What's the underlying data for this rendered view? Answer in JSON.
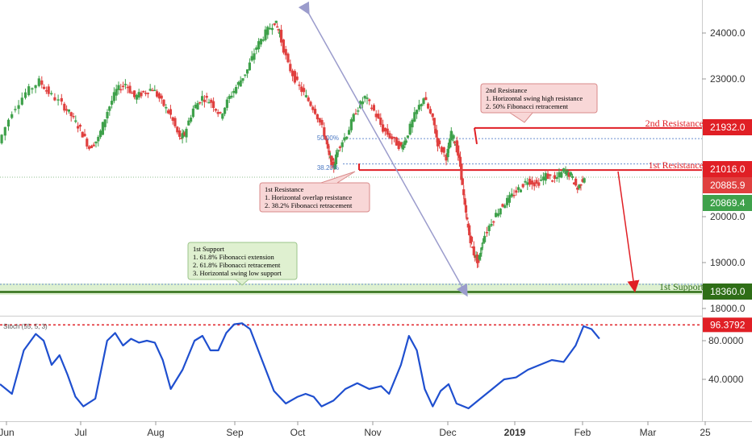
{
  "chart_data": {
    "type": "candlestick",
    "price_axis": {
      "ticks": [
        {
          "value": 24000,
          "label": "24000.0"
        },
        {
          "value": 23000,
          "label": "23000.0"
        },
        {
          "value": 20000,
          "label": "20000.0"
        },
        {
          "value": 19000,
          "label": "19000.0"
        },
        {
          "value": 18000,
          "label": "18000.0"
        }
      ],
      "range": [
        17800,
        24600
      ]
    },
    "time_axis": {
      "labels": [
        {
          "label": "Jun",
          "bold": false
        },
        {
          "label": "Jul",
          "bold": false
        },
        {
          "label": "Aug",
          "bold": false
        },
        {
          "label": "Sep",
          "bold": false
        },
        {
          "label": "Oct",
          "bold": false
        },
        {
          "label": "Nov",
          "bold": false
        },
        {
          "label": "Dec",
          "bold": false
        },
        {
          "label": "2019",
          "bold": true
        },
        {
          "label": "Feb",
          "bold": false
        },
        {
          "label": "Mar",
          "bold": false
        },
        {
          "label": "25",
          "bold": false
        }
      ]
    },
    "price_path": [
      [
        0,
        21600
      ],
      [
        0.6,
        22300
      ],
      [
        1.2,
        22700
      ],
      [
        1.8,
        22950
      ],
      [
        2.2,
        22700
      ],
      [
        2.8,
        22450
      ],
      [
        3.2,
        22200
      ],
      [
        3.6,
        21900
      ],
      [
        4.0,
        21500
      ],
      [
        4.4,
        21700
      ],
      [
        4.8,
        22300
      ],
      [
        5.2,
        22750
      ],
      [
        5.6,
        22900
      ],
      [
        6.0,
        22600
      ],
      [
        6.4,
        22700
      ],
      [
        6.8,
        22800
      ],
      [
        7.2,
        22500
      ],
      [
        7.6,
        22200
      ],
      [
        8.0,
        21700
      ],
      [
        8.2,
        21800
      ],
      [
        8.6,
        22350
      ],
      [
        9.0,
        22600
      ],
      [
        9.4,
        22500
      ],
      [
        9.8,
        22200
      ],
      [
        10.2,
        22600
      ],
      [
        10.6,
        22900
      ],
      [
        11.0,
        23200
      ],
      [
        11.4,
        23700
      ],
      [
        11.8,
        24000
      ],
      [
        12.2,
        24250
      ],
      [
        12.4,
        24000
      ],
      [
        12.8,
        23300
      ],
      [
        13.2,
        22900
      ],
      [
        13.6,
        22600
      ],
      [
        14.0,
        22300
      ],
      [
        14.4,
        21800
      ],
      [
        14.6,
        21300
      ],
      [
        14.8,
        21100
      ],
      [
        15.0,
        21500
      ],
      [
        15.4,
        21800
      ],
      [
        15.8,
        22300
      ],
      [
        16.2,
        22600
      ],
      [
        16.6,
        22300
      ],
      [
        17.0,
        21900
      ],
      [
        17.4,
        21700
      ],
      [
        17.8,
        21500
      ],
      [
        18.0,
        21700
      ],
      [
        18.4,
        22200
      ],
      [
        18.8,
        22600
      ],
      [
        19.2,
        22100
      ],
      [
        19.4,
        21600
      ],
      [
        19.8,
        21300
      ],
      [
        20.0,
        21800
      ],
      [
        20.2,
        21600
      ],
      [
        20.4,
        21100
      ],
      [
        20.6,
        20200
      ],
      [
        20.8,
        19600
      ],
      [
        21.0,
        19200
      ],
      [
        21.2,
        19000
      ],
      [
        21.4,
        19500
      ],
      [
        21.8,
        19900
      ],
      [
        22.2,
        20200
      ],
      [
        22.6,
        20400
      ],
      [
        23.0,
        20600
      ],
      [
        23.4,
        20800
      ],
      [
        23.8,
        20700
      ],
      [
        24.2,
        20900
      ],
      [
        24.6,
        20800
      ],
      [
        25.0,
        21000
      ],
      [
        25.3,
        20900
      ],
      [
        25.6,
        20600
      ],
      [
        25.9,
        20885
      ]
    ],
    "levels": [
      {
        "name": "2nd Resistance",
        "value": 21932
      },
      {
        "name": "1st Resistance",
        "value": 21016
      },
      {
        "name": "1st Support",
        "value": 18360
      }
    ],
    "fib_levels": [
      {
        "label": "50.00%",
        "value": 21700
      },
      {
        "label": "38.20%",
        "value": 21150
      }
    ],
    "price_badges": [
      {
        "label": "21932.0",
        "value": 21932,
        "color": "#e01f25"
      },
      {
        "label": "21016.0",
        "value": 21016,
        "color": "#e01f25"
      },
      {
        "label": "20885.9",
        "value": 20885.9,
        "color": "#e0403f"
      },
      {
        "label": "20869.4",
        "value": 20869.4,
        "color": "#3fa14b"
      },
      {
        "label": "18360.0",
        "value": 18360,
        "color": "#2f6e17"
      }
    ],
    "annotations": {
      "second_resistance": {
        "title": "2nd Resistance",
        "lines": [
          "1. Horizontal swing high resistance",
          "2. 50% Fibonacci retracement"
        ]
      },
      "first_resistance": {
        "title": "1st Resistance",
        "lines": [
          "1. Horizontal overlap resistance",
          "2. 38.2% Fibonacci retracement"
        ]
      },
      "first_support": {
        "title": "1st Support",
        "lines": [
          "1. 61.8% Fibonacci extension",
          "2. 61.8% Fibonacci retracement",
          "3. Horizontal swing low support"
        ]
      }
    },
    "stochastic": {
      "label": "Stoch (55, 5, 3)",
      "range": [
        0,
        100
      ],
      "ticks": [
        {
          "value": 80,
          "label": "80.0000"
        },
        {
          "value": 40,
          "label": "40.0000"
        }
      ],
      "level": {
        "value": 96.3792,
        "label": "96.3792"
      },
      "path": [
        [
          0,
          35
        ],
        [
          0.6,
          25
        ],
        [
          1.2,
          70
        ],
        [
          1.8,
          87
        ],
        [
          2.2,
          80
        ],
        [
          2.6,
          55
        ],
        [
          3.0,
          65
        ],
        [
          3.4,
          45
        ],
        [
          3.8,
          22
        ],
        [
          4.2,
          12
        ],
        [
          4.8,
          20
        ],
        [
          5.4,
          80
        ],
        [
          5.8,
          88
        ],
        [
          6.2,
          75
        ],
        [
          6.6,
          82
        ],
        [
          7.0,
          78
        ],
        [
          7.4,
          80
        ],
        [
          7.8,
          78
        ],
        [
          8.2,
          60
        ],
        [
          8.6,
          30
        ],
        [
          9.2,
          50
        ],
        [
          9.8,
          80
        ],
        [
          10.2,
          85
        ],
        [
          10.6,
          70
        ],
        [
          11.0,
          70
        ],
        [
          11.4,
          88
        ],
        [
          11.8,
          97
        ],
        [
          12.2,
          98
        ],
        [
          12.6,
          92
        ],
        [
          13.2,
          60
        ],
        [
          13.8,
          28
        ],
        [
          14.4,
          15
        ],
        [
          15.0,
          22
        ],
        [
          15.4,
          25
        ],
        [
          15.8,
          22
        ],
        [
          16.2,
          12
        ],
        [
          16.8,
          18
        ],
        [
          17.4,
          30
        ],
        [
          18.0,
          36
        ],
        [
          18.6,
          30
        ],
        [
          19.2,
          33
        ],
        [
          19.6,
          25
        ],
        [
          20.2,
          55
        ],
        [
          20.6,
          85
        ],
        [
          21.0,
          70
        ],
        [
          21.4,
          30
        ],
        [
          21.8,
          12
        ],
        [
          22.2,
          28
        ],
        [
          22.6,
          35
        ],
        [
          23.0,
          15
        ],
        [
          23.6,
          10
        ],
        [
          24.2,
          20
        ],
        [
          24.8,
          30
        ],
        [
          25.4,
          40
        ],
        [
          26.0,
          42
        ],
        [
          26.6,
          50
        ],
        [
          27.2,
          55
        ],
        [
          27.8,
          60
        ],
        [
          28.4,
          58
        ],
        [
          29.0,
          75
        ],
        [
          29.4,
          95
        ],
        [
          29.8,
          92
        ],
        [
          30.2,
          82
        ]
      ]
    }
  }
}
